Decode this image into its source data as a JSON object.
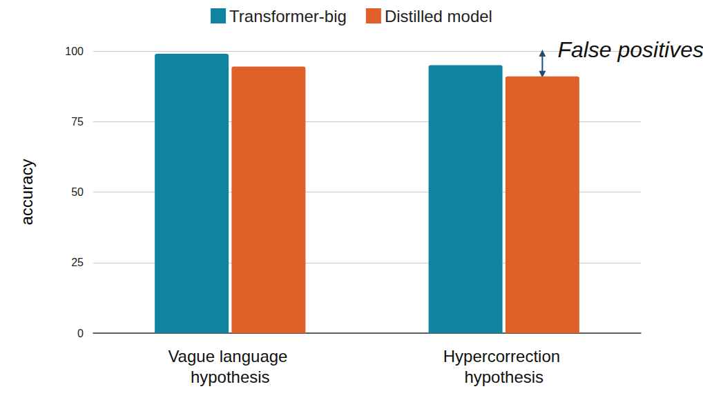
{
  "chart_data": {
    "type": "bar",
    "categories": [
      "Vague language hypothesis",
      "Hypercorrection hypothesis"
    ],
    "series": [
      {
        "name": "Transformer-big",
        "color": "#0e84a0",
        "values": [
          99,
          95
        ]
      },
      {
        "name": "Distilled model",
        "color": "#e0602a",
        "values": [
          94.5,
          91
        ]
      }
    ],
    "y_label": "accuracy",
    "ylim": [
      0,
      100
    ],
    "yticks": [
      0,
      25,
      50,
      75,
      100
    ],
    "grid": true,
    "legend": "top",
    "annotations": [
      {
        "text": "False positives",
        "category": "Hypercorrection hypothesis",
        "series": "Distilled model"
      }
    ]
  }
}
